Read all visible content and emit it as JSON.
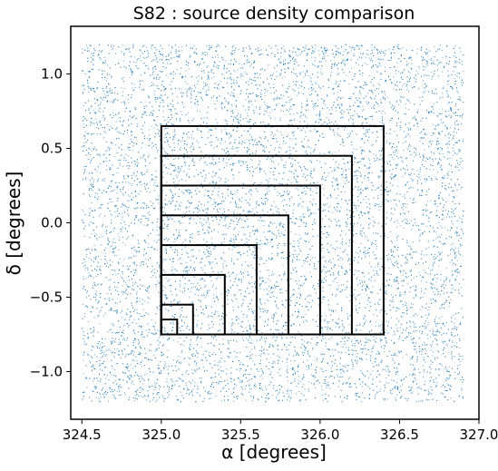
{
  "chart_data": {
    "type": "scatter",
    "title": "S82 : source density comparison",
    "xlabel": "α [degrees]",
    "ylabel": "δ [degrees]",
    "xlim": [
      324.43,
      327.0
    ],
    "ylim": [
      -1.32,
      1.32
    ],
    "x_ticks": [
      324.5,
      325.0,
      325.5,
      326.0,
      326.5,
      327.0
    ],
    "x_tick_labels": [
      "324.5",
      "325.0",
      "325.5",
      "326.0",
      "326.5",
      "327.0"
    ],
    "y_ticks": [
      1.0,
      0.5,
      0.0,
      -0.5,
      -1.0
    ],
    "y_tick_labels": [
      "1.0",
      "0.5",
      "0.0",
      "−0.5",
      "−1.0"
    ],
    "grid": false,
    "series": [
      {
        "kind": "scatter",
        "ra_range": [
          324.5,
          326.9
        ],
        "dec_range": [
          -1.2,
          1.2
        ],
        "point_color": "#1f77b4",
        "depleted_spots": [
          {
            "ra": 325.37,
            "dec": 0.72
          },
          {
            "ra": 326.07,
            "dec": 0.53
          },
          {
            "ra": 324.87,
            "dec": -0.07
          },
          {
            "ra": 325.53,
            "dec": 0.3
          },
          {
            "ra": 326.4,
            "dec": -0.15
          },
          {
            "ra": 326.85,
            "dec": -0.53
          },
          {
            "ra": 326.6,
            "dec": 0.85
          },
          {
            "ra": 325.93,
            "dec": -0.72
          },
          {
            "ra": 325.07,
            "dec": -0.85
          },
          {
            "ra": 326.73,
            "dec": 0.93
          },
          {
            "ra": 325.27,
            "dec": -1.05
          },
          {
            "ra": 326.17,
            "dec": 0.9
          },
          {
            "ra": 325.67,
            "dec": 1.08
          },
          {
            "ra": 324.97,
            "dec": 0.37
          },
          {
            "ra": 326.53,
            "dec": -0.98
          }
        ]
      }
    ],
    "rectangles": [
      {
        "x0": 325.0,
        "y0": -0.75,
        "x1": 326.4,
        "y1": 0.65
      },
      {
        "x0": 325.0,
        "y0": -0.75,
        "x1": 326.2,
        "y1": 0.45
      },
      {
        "x0": 325.0,
        "y0": -0.75,
        "x1": 326.0,
        "y1": 0.25
      },
      {
        "x0": 325.0,
        "y0": -0.75,
        "x1": 325.8,
        "y1": 0.05
      },
      {
        "x0": 325.0,
        "y0": -0.75,
        "x1": 325.6,
        "y1": -0.15
      },
      {
        "x0": 325.0,
        "y0": -0.75,
        "x1": 325.4,
        "y1": -0.35
      },
      {
        "x0": 325.0,
        "y0": -0.75,
        "x1": 325.2,
        "y1": -0.55
      },
      {
        "x0": 325.0,
        "y0": -0.75,
        "x1": 325.1,
        "y1": -0.65
      }
    ],
    "rectangle_color": "#000000"
  }
}
